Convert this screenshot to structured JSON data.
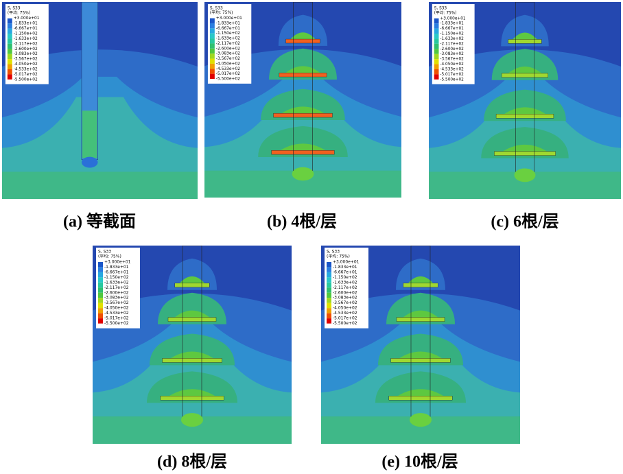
{
  "legend": {
    "title": "S, S33",
    "subtitle": "(平均: 75%)",
    "labels": [
      "+3.000e+01",
      "-1.833e+01",
      "-6.667e+01",
      "-1.150e+02",
      "-1.633e+02",
      "-2.117e+02",
      "-2.600e+02",
      "-3.083e+02",
      "-3.567e+02",
      "-4.050e+02",
      "-4.533e+02",
      "-5.017e+02",
      "-5.500e+02"
    ]
  },
  "panels": [
    {
      "caption": "(a) 等截面"
    },
    {
      "caption": "(b) 4根/层"
    },
    {
      "caption": "(c) 6根/层"
    },
    {
      "caption": "(d) 8根/层"
    },
    {
      "caption": "(e) 10根/层"
    }
  ]
}
